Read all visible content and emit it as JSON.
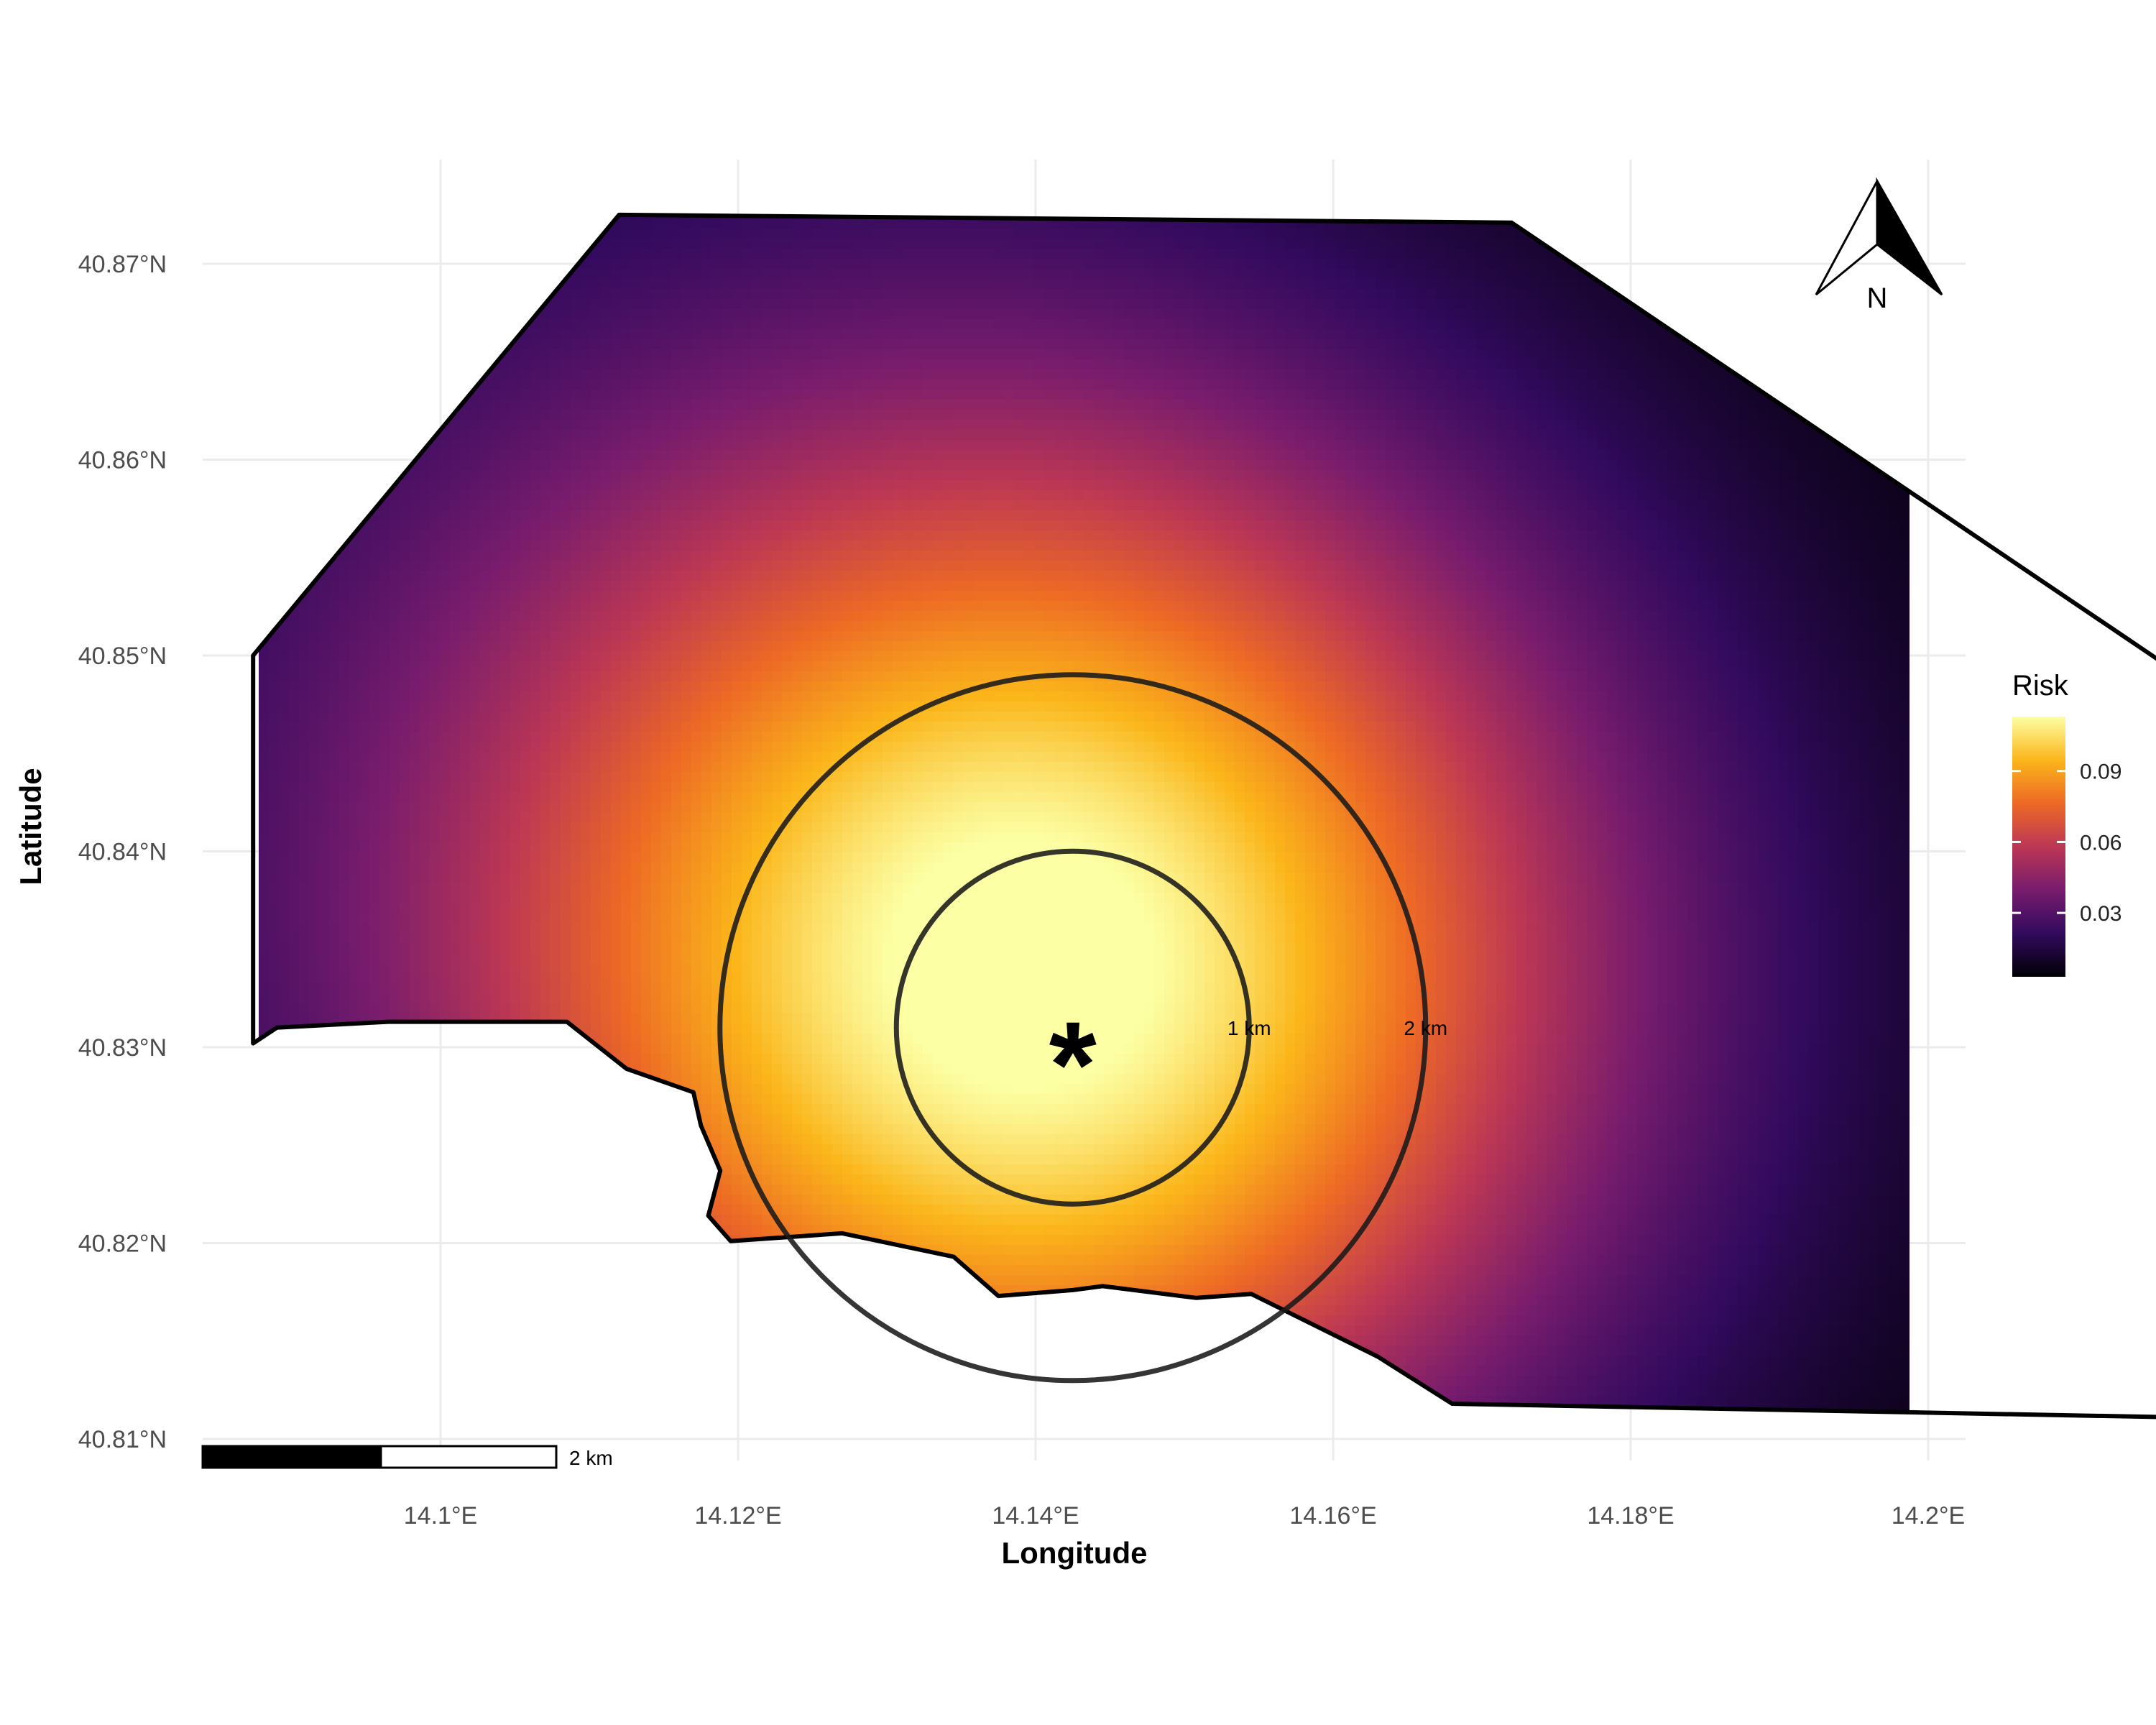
{
  "map": {
    "x_axis": {
      "title": "Longitude",
      "ticks": [
        {
          "value": 14.1,
          "label": "14.1°E"
        },
        {
          "value": 14.12,
          "label": "14.12°E"
        },
        {
          "value": 14.14,
          "label": "14.14°E"
        },
        {
          "value": 14.16,
          "label": "14.16°E"
        },
        {
          "value": 14.18,
          "label": "14.18°E"
        },
        {
          "value": 14.2,
          "label": "14.2°E"
        }
      ]
    },
    "y_axis": {
      "title": "Latitude",
      "ticks": [
        {
          "value": 40.81,
          "label": "40.81°N"
        },
        {
          "value": 40.82,
          "label": "40.82°N"
        },
        {
          "value": 40.83,
          "label": "40.83°N"
        },
        {
          "value": 40.84,
          "label": "40.84°N"
        },
        {
          "value": 40.85,
          "label": "40.85°N"
        },
        {
          "value": 40.86,
          "label": "40.86°N"
        },
        {
          "value": 40.87,
          "label": "40.87°N"
        }
      ]
    },
    "extent": {
      "lon": [
        14.082,
        14.2025
      ],
      "lat": [
        40.8088,
        40.8765
      ]
    },
    "region_boundary": [
      [
        14.0874,
        40.8302
      ],
      [
        14.0874,
        40.85
      ],
      [
        14.112,
        40.8725
      ],
      [
        14.172,
        40.8721
      ],
      [
        14.2168,
        40.8491
      ],
      [
        14.2168,
        40.8111
      ],
      [
        14.168,
        40.8118
      ],
      [
        14.163,
        40.8142
      ],
      [
        14.1545,
        40.8174
      ],
      [
        14.1508,
        40.8172
      ],
      [
        14.1445,
        40.8178
      ],
      [
        14.1425,
        40.8176
      ],
      [
        14.1375,
        40.8173
      ],
      [
        14.1345,
        40.8193
      ],
      [
        14.127,
        40.8205
      ],
      [
        14.1195,
        40.8201
      ],
      [
        14.118,
        40.8214
      ],
      [
        14.1188,
        40.8237
      ],
      [
        14.1175,
        40.826
      ],
      [
        14.117,
        40.8277
      ],
      [
        14.1125,
        40.8289
      ],
      [
        14.1085,
        40.8313
      ],
      [
        14.0965,
        40.8313
      ],
      [
        14.089,
        40.831
      ],
      [
        14.0874,
        40.8302
      ]
    ],
    "source": {
      "symbol": "*",
      "lon": 14.1425,
      "lat": 40.831
    },
    "buffers": [
      {
        "radius_km": 1,
        "label": "1 km"
      },
      {
        "radius_km": 2,
        "label": "2 km"
      }
    ],
    "scale_bar": {
      "label": "2 km",
      "length_km": 2
    },
    "north_arrow": {
      "label": "N"
    },
    "risk_surface": {
      "peak": 0.113,
      "peak_lon": 14.14,
      "peak_lat": 40.834,
      "floor": 0.003
    }
  },
  "legend": {
    "title": "Risk",
    "ticks": [
      {
        "value": 0.03,
        "label": "0.03"
      },
      {
        "value": 0.06,
        "label": "0.06"
      },
      {
        "value": 0.09,
        "label": "0.09"
      }
    ],
    "range": [
      0.003,
      0.113
    ],
    "palette": "inferno",
    "colors": [
      "#000004",
      "#320a5e",
      "#781c6d",
      "#bc3754",
      "#ed6925",
      "#fbb61a",
      "#fcffa4"
    ]
  }
}
